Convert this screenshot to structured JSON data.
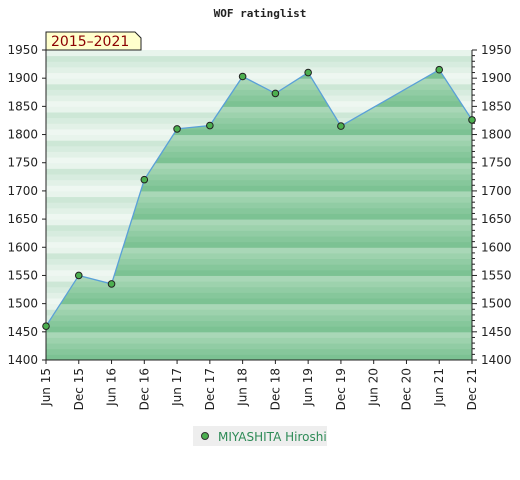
{
  "chart_data": {
    "type": "area",
    "title": "WOF ratinglist",
    "badge": "2015–2021",
    "x": [
      "Jun 15",
      "Dec 15",
      "Jun 16",
      "Dec 16",
      "Jun 17",
      "Dec 17",
      "Jun 18",
      "Dec 18",
      "Jun 19",
      "Dec 19",
      "Jun 20",
      "Dec 20",
      "Jun 21",
      "Dec 21"
    ],
    "series": [
      {
        "name": "MIYASHITA Hiroshi",
        "values": [
          1460,
          1550,
          1535,
          1720,
          1810,
          1816,
          1903,
          1873,
          1910,
          1815,
          null,
          null,
          1915,
          1826
        ],
        "color": "#5aa0d8"
      }
    ],
    "ylim": [
      1400,
      1950
    ],
    "y_ticks": [
      1400,
      1450,
      1500,
      1550,
      1600,
      1650,
      1700,
      1750,
      1800,
      1850,
      1900,
      1950
    ],
    "grid": true,
    "legend_position": "bottom-center"
  }
}
